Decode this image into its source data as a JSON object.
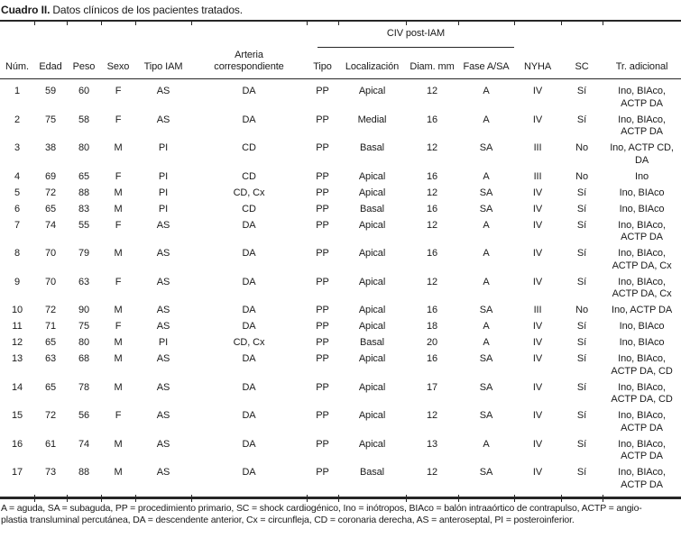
{
  "caption": {
    "label": "Cuadro II.",
    "text": "Datos clínicos de los pacientes tratados."
  },
  "table": {
    "span_header": "CIV post-IAM",
    "columns": [
      "Núm.",
      "Edad",
      "Peso",
      "Sexo",
      "Tipo IAM",
      "Arteria\ncorrespondiente",
      "Tipo",
      "Localización",
      "Diam. mm",
      "Fase A/SA",
      "NYHA",
      "SC",
      "Tr. adicional"
    ],
    "rows": [
      [
        "1",
        "59",
        "60",
        "F",
        "AS",
        "DA",
        "PP",
        "Apical",
        "12",
        "A",
        "IV",
        "Sí",
        "Ino, BIAco,\nACTP DA"
      ],
      [
        "2",
        "75",
        "58",
        "F",
        "AS",
        "DA",
        "PP",
        "Medial",
        "16",
        "A",
        "IV",
        "Sí",
        "Ino, BIAco,\nACTP DA"
      ],
      [
        "3",
        "38",
        "80",
        "M",
        "PI",
        "CD",
        "PP",
        "Basal",
        "12",
        "SA",
        "III",
        "No",
        "Ino, ACTP CD,\nDA"
      ],
      [
        "4",
        "69",
        "65",
        "F",
        "PI",
        "CD",
        "PP",
        "Apical",
        "16",
        "A",
        "III",
        "No",
        "Ino"
      ],
      [
        "5",
        "72",
        "88",
        "M",
        "PI",
        "CD, Cx",
        "PP",
        "Apical",
        "12",
        "SA",
        "IV",
        "Sí",
        "Ino, BIAco"
      ],
      [
        "6",
        "65",
        "83",
        "M",
        "PI",
        "CD",
        "PP",
        "Basal",
        "16",
        "SA",
        "IV",
        "Sí",
        "Ino, BIAco"
      ],
      [
        "7",
        "74",
        "55",
        "F",
        "AS",
        "DA",
        "PP",
        "Apical",
        "12",
        "A",
        "IV",
        "Sí",
        "Ino, BIAco,\nACTP DA"
      ],
      [
        "8",
        "70",
        "79",
        "M",
        "AS",
        "DA",
        "PP",
        "Apical",
        "16",
        "A",
        "IV",
        "Sí",
        "Ino, BIAco,\nACTP DA, Cx"
      ],
      [
        "9",
        "70",
        "63",
        "F",
        "AS",
        "DA",
        "PP",
        "Apical",
        "12",
        "A",
        "IV",
        "Sí",
        "Ino, BIAco,\nACTP DA, Cx"
      ],
      [
        "10",
        "72",
        "90",
        "M",
        "AS",
        "DA",
        "PP",
        "Apical",
        "16",
        "SA",
        "III",
        "No",
        "Ino, ACTP DA"
      ],
      [
        "11",
        "71",
        "75",
        "F",
        "AS",
        "DA",
        "PP",
        "Apical",
        "18",
        "A",
        "IV",
        "Sí",
        "Ino, BIAco"
      ],
      [
        "12",
        "65",
        "80",
        "M",
        "PI",
        "CD, Cx",
        "PP",
        "Basal",
        "20",
        "A",
        "IV",
        "Sí",
        "Ino, BIAco"
      ],
      [
        "13",
        "63",
        "68",
        "M",
        "AS",
        "DA",
        "PP",
        "Apical",
        "16",
        "SA",
        "IV",
        "Sí",
        "Ino, BIAco,\nACTP DA, CD"
      ],
      [
        "14",
        "65",
        "78",
        "M",
        "AS",
        "DA",
        "PP",
        "Apical",
        "17",
        "SA",
        "IV",
        "Sí",
        "Ino, BIAco,\nACTP DA, CD"
      ],
      [
        "15",
        "72",
        "56",
        "F",
        "AS",
        "DA",
        "PP",
        "Apical",
        "12",
        "SA",
        "IV",
        "Sí",
        "Ino, BIAco,\nACTP DA"
      ],
      [
        "16",
        "61",
        "74",
        "M",
        "AS",
        "DA",
        "PP",
        "Apical",
        "13",
        "A",
        "IV",
        "Sí",
        "Ino, BIAco,\nACTP DA"
      ],
      [
        "17",
        "73",
        "88",
        "M",
        "AS",
        "DA",
        "PP",
        "Basal",
        "12",
        "SA",
        "IV",
        "Sí",
        "Ino, BIAco,\nACTP DA"
      ]
    ]
  },
  "footnote": "A = aguda, SA = subaguda, PP = procedimiento primario, SC = shock cardiogénico, Ino = inótropos, BIAco = balón intraaórtico de contrapulso, ACTP = angio-\nplastia transluminal percutánea, DA = descendente anterior, Cx = circunfleja, CD = coronaria derecha, AS = anteroseptal, PI = posteroinferior.",
  "colors": {
    "text": "#1a1a1a",
    "rule": "#262626",
    "background": "#ffffff"
  }
}
